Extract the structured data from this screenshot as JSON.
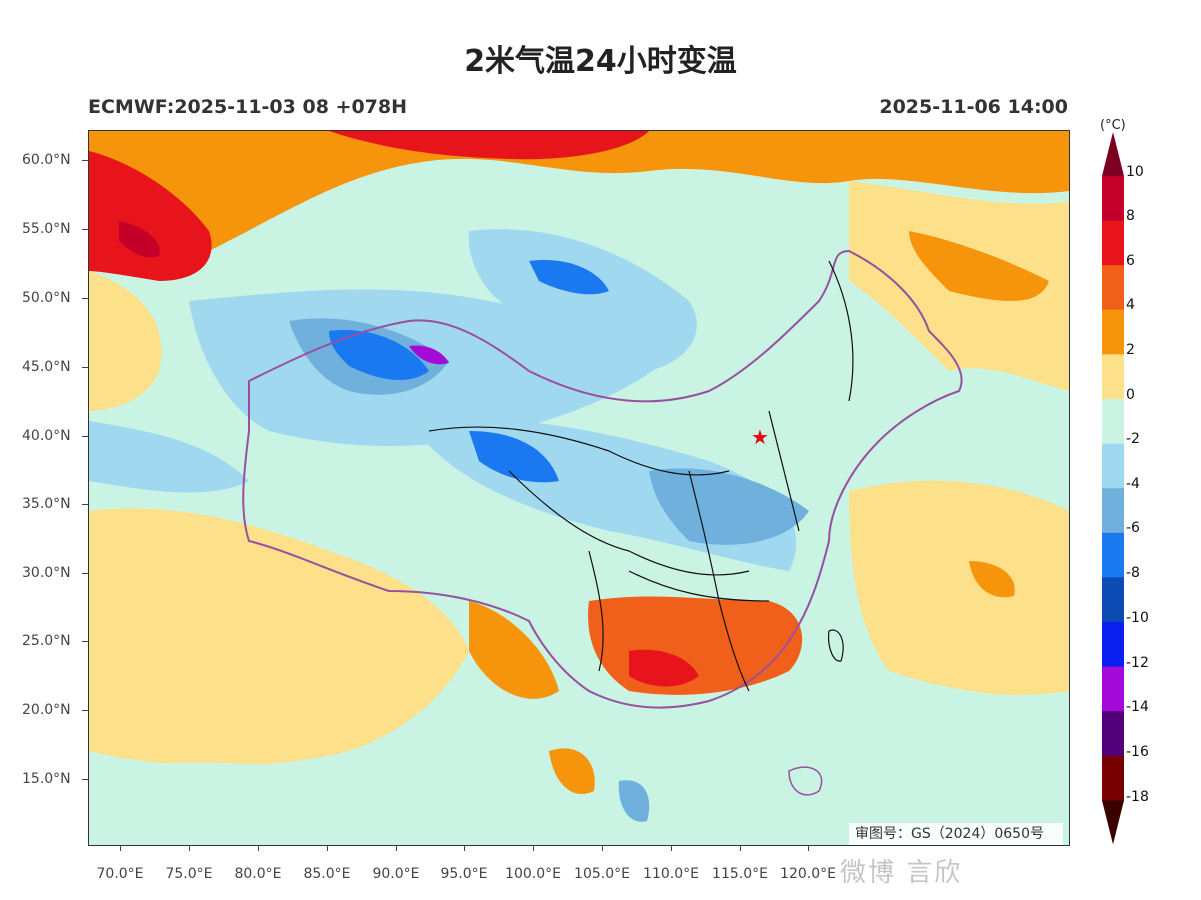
{
  "title": "2米气温24小时变温",
  "model_run": "ECMWF:2025-11-03 08 +078H",
  "valid_time": "2025-11-06 14:00",
  "lat_labels": [
    "60.0°N",
    "55.0°N",
    "50.0°N",
    "45.0°N",
    "40.0°N",
    "35.0°N",
    "30.0°N",
    "25.0°N",
    "20.0°N",
    "15.0°N"
  ],
  "lon_labels": [
    "70.0°E",
    "75.0°E",
    "80.0°E",
    "85.0°E",
    "90.0°E",
    "95.0°E",
    "100.0°E",
    "105.0°E",
    "110.0°E",
    "115.0°E",
    "120.0°E"
  ],
  "legend": {
    "unit": "(°C)",
    "labels": [
      "10",
      "8",
      "6",
      "4",
      "2",
      "0",
      "-2",
      "-4",
      "-6",
      "-8",
      "-10",
      "-12",
      "-14",
      "-16",
      "-18"
    ],
    "colors": [
      "#7d0021",
      "#c4002a",
      "#e8141c",
      "#f0601a",
      "#f6940c",
      "#fde08a",
      "#c9f4e4",
      "#9fd8ef",
      "#6fb0dd",
      "#1a78f0",
      "#0c4ab4",
      "#0a1ff0",
      "#a40ad8",
      "#52007a",
      "#780000",
      "#3a0000"
    ]
  },
  "review_number": "审图号：GS（2024）0650号",
  "watermark": "微博 言欣",
  "colors": {
    "warm_strong": "#e8141c",
    "warm": "#f0601a",
    "orange": "#f6940c",
    "pale_yellow": "#fde08a",
    "cyan": "#c9f4e4",
    "light_blue": "#9fd8ef",
    "mid_blue": "#6fb0dd",
    "blue": "#1a78f0",
    "purple": "#a40ad8",
    "border": "#9a4fa0"
  }
}
